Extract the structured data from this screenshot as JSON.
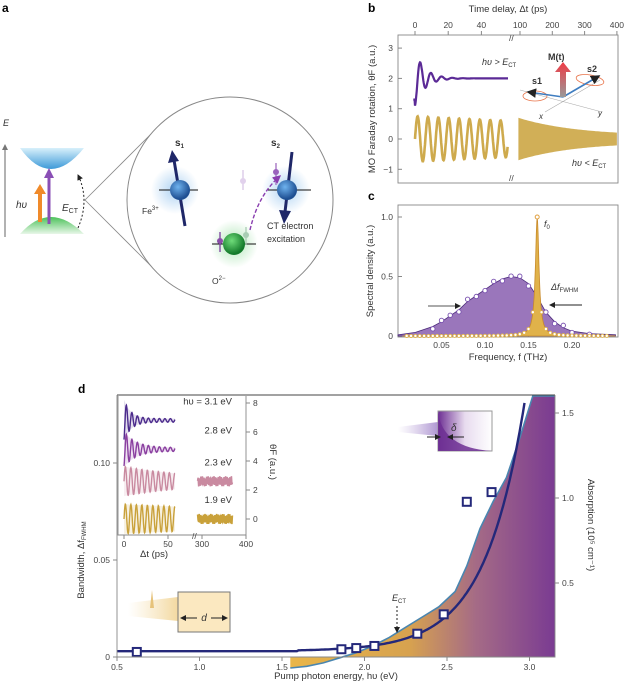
{
  "panels": {
    "a": "a",
    "b": "b",
    "c": "c",
    "d": "d"
  },
  "colors": {
    "purple": "#5b2a96",
    "gold": "#c9a13a",
    "navy": "#24287a",
    "absorption_edge": "#4a86b0",
    "fe_blue": "#2f6fb5",
    "o_green": "#2aa53c",
    "magnetization_red": "#e8343a"
  },
  "panel_a": {
    "energy_axis": "E",
    "photon": "hυ",
    "gap_label": {
      "main": "E",
      "sub": "CT"
    },
    "fe_label": {
      "main": "Fe",
      "sup": "3+"
    },
    "o_label": {
      "main": "O",
      "sup": "2−"
    },
    "spin1": {
      "main": "s",
      "sub": "1"
    },
    "spin2": {
      "main": "s",
      "sub": "2"
    },
    "transition_line1": "CT electron",
    "transition_line2": "excitation"
  },
  "chart_data": [
    {
      "panel": "b",
      "type": "line",
      "xlabel": "Time delay, Δt (ps)",
      "ylabel": "MO Faraday rotation, θF (a.u.)",
      "xticks_segment1": [
        "0",
        "20",
        "40"
      ],
      "xticks_segment2": [
        "100",
        "200",
        "300",
        "400"
      ],
      "xlim_segment1": [
        0,
        57
      ],
      "xlim_segment2": [
        95,
        400
      ],
      "yticks": [
        "3",
        "2",
        "1",
        "0",
        "−1"
      ],
      "ylim": [
        -1.5,
        3.3
      ],
      "series": [
        {
          "name": "hυ > ECT",
          "label_main": "hυ > E",
          "label_sub": "CT",
          "offset": 2.0,
          "amplitude": 0.9,
          "frequency_THz": 0.155,
          "decay_ps": 6,
          "color": "#5b2a96"
        },
        {
          "name": "hυ < ECT",
          "label_main": "hυ < E",
          "label_sub": "CT",
          "offset": 0.0,
          "amplitude": 0.75,
          "frequency_THz": 0.16,
          "decay_ps": 250,
          "color": "#c9a13a"
        }
      ],
      "inset": {
        "magnetization": "M(t)",
        "spin1": "s1",
        "spin2": "s2",
        "x_axis": "x",
        "y_axis": "y"
      }
    },
    {
      "panel": "c",
      "type": "area",
      "xlabel": "Frequency, f (THz)",
      "ylabel": "Spectral density (a.u.)",
      "xticks": [
        "0.05",
        "0.10",
        "0.15",
        "0.20"
      ],
      "yticks": [
        "1.0",
        "0.5",
        "0"
      ],
      "xlim": [
        0,
        0.25
      ],
      "ylim": [
        0,
        1.05
      ],
      "broad_spectrum": {
        "f": [
          0.0,
          0.02,
          0.04,
          0.05,
          0.06,
          0.07,
          0.08,
          0.09,
          0.1,
          0.11,
          0.12,
          0.13,
          0.14,
          0.15,
          0.16,
          0.17,
          0.18,
          0.19,
          0.2,
          0.22,
          0.25
        ],
        "s": [
          0.01,
          0.03,
          0.08,
          0.12,
          0.17,
          0.22,
          0.29,
          0.34,
          0.39,
          0.44,
          0.48,
          0.5,
          0.49,
          0.44,
          0.33,
          0.2,
          0.12,
          0.07,
          0.04,
          0.02,
          0.01
        ]
      },
      "narrow_peak": {
        "f0": 0.16,
        "height": 1.0,
        "hwhm": 0.0025
      },
      "peak_label": {
        "main": "f",
        "sub": "0"
      },
      "width_label": {
        "main": "Δf",
        "sub": "FWHM"
      }
    },
    {
      "panel": "d",
      "type": "scatter",
      "xlabel": "Pump photon energy, hυ (eV)",
      "ylabel": "Bandwidth, Δf",
      "ylabel_sub": "FWHM",
      "y2label": "Absorption (10⁵ cm⁻¹)",
      "xticks": [
        "0.5",
        "1.0",
        "1.5",
        "2.0",
        "2.5",
        "3.0"
      ],
      "xlim": [
        0.5,
        3.15
      ],
      "yticks": [
        "0",
        "0.05",
        "0.10"
      ],
      "ylim": [
        0,
        0.135
      ],
      "y2ticks": [
        "0.5",
        "1.0",
        "1.5"
      ],
      "y2lim": [
        -0.065,
        1.6
      ],
      "bandwidth_points": {
        "x": [
          0.62,
          1.86,
          1.95,
          2.06,
          2.32,
          2.48,
          2.62,
          2.77
        ],
        "y": [
          0.0026,
          0.004,
          0.0046,
          0.0057,
          0.012,
          0.022,
          0.08,
          0.085
        ]
      },
      "fit_curve": {
        "base": 0.003,
        "a": 0.00102,
        "b": 4.13,
        "x0": 1.8
      },
      "absorption": {
        "x": [
          1.55,
          1.65,
          1.75,
          1.85,
          1.95,
          2.05,
          2.15,
          2.25,
          2.35,
          2.45,
          2.55,
          2.62,
          2.7,
          2.78,
          2.86,
          2.94,
          3.02,
          3.15
        ],
        "y": [
          0.0,
          0.01,
          0.03,
          0.06,
          0.09,
          0.13,
          0.18,
          0.24,
          0.3,
          0.36,
          0.45,
          0.6,
          0.82,
          0.98,
          1.12,
          1.35,
          1.6,
          1.6
        ]
      },
      "ect_marker": {
        "main": "E",
        "sub": "CT",
        "x": 2.2
      },
      "box_depth_label": "d",
      "box_skin_label": "δ",
      "inset": {
        "xlabel": "Δt (ps)",
        "xticks": [
          "0",
          "50",
          "300",
          "400"
        ],
        "ylabel": "θF (a.u.)",
        "yticks": [
          "8",
          "6",
          "4",
          "2",
          "0"
        ],
        "traces": [
          {
            "label": "hυ = 3.1 eV",
            "offset": 6.8,
            "amp": 1.3,
            "decay": 8,
            "color": "#4b2a8c",
            "long": false
          },
          {
            "label": "2.8 eV",
            "offset": 4.8,
            "amp": 1.1,
            "decay": 14,
            "color": "#8a3fa0",
            "long": false
          },
          {
            "label": "2.3 eV",
            "offset": 2.6,
            "amp": 0.9,
            "decay": 80,
            "color": "#c98aa0",
            "long": true
          },
          {
            "label": "1.9 eV",
            "offset": 0.0,
            "amp": 0.9,
            "decay": 300,
            "color": "#c9a13a",
            "long": true
          }
        ]
      }
    }
  ]
}
